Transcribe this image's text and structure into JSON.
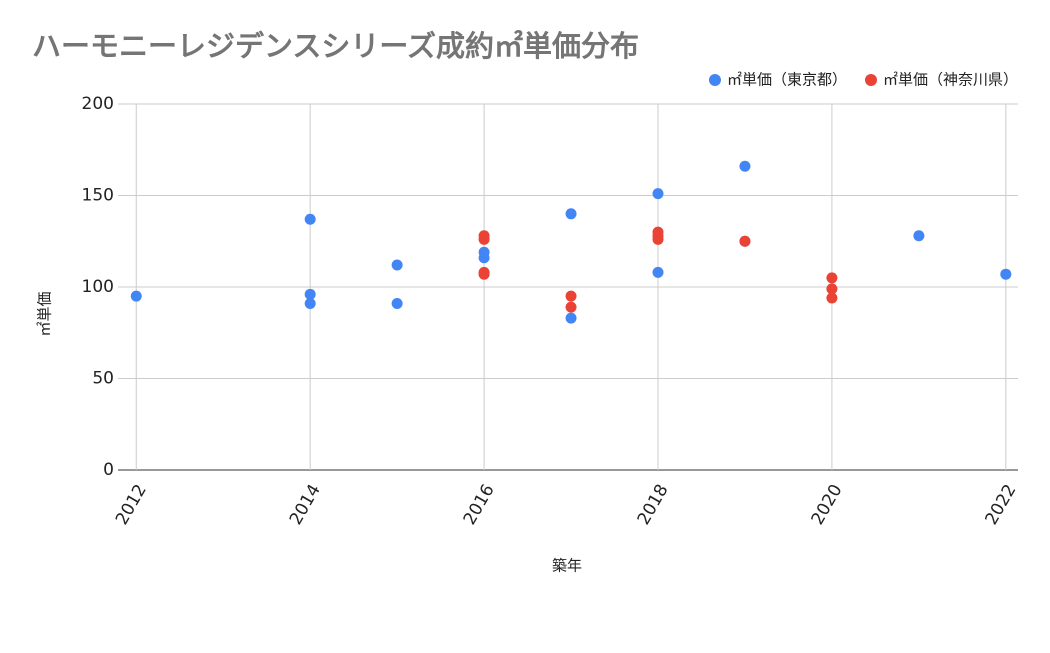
{
  "chart_data": {
    "type": "scatter",
    "title": "ハーモニーレジデンスシリーズ成約㎡単価分布",
    "x_label": "築年",
    "y_label": "㎡単価",
    "series": [
      {
        "name": "㎡単価（東京都）",
        "color": "#4285f4",
        "x": [
          2012,
          2014,
          2014,
          2014,
          2015,
          2015,
          2016,
          2016,
          2017,
          2017,
          2018,
          2018,
          2019,
          2019,
          2021,
          2022
        ],
        "values": [
          95,
          137,
          96,
          91,
          112,
          91,
          119,
          116,
          140,
          83,
          151,
          108,
          166,
          125,
          128,
          107
        ]
      },
      {
        "name": "㎡単価（神奈川県）",
        "color": "#ea4335",
        "x": [
          2016,
          2016,
          2016,
          2016,
          2017,
          2017,
          2018,
          2018,
          2018,
          2019,
          2020,
          2020,
          2020
        ],
        "values": [
          128,
          126,
          108,
          107,
          95,
          89,
          130,
          128,
          126,
          125,
          105,
          99,
          94
        ]
      }
    ],
    "xlim": [
      2011.79,
      2022.14
    ],
    "xticks": [
      2012,
      2014,
      2016,
      2018,
      2020,
      2022
    ],
    "ylim": [
      0,
      200
    ],
    "yticks": [
      0,
      50,
      100,
      150,
      200
    ],
    "grid": true,
    "legend": "top-right"
  }
}
